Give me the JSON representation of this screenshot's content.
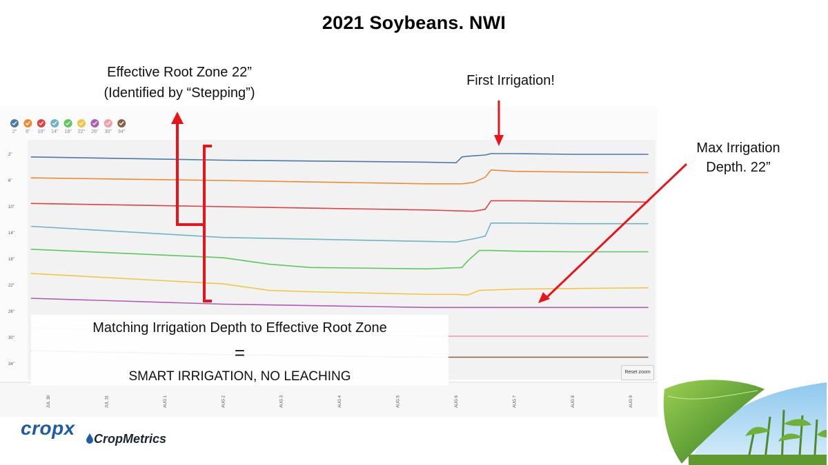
{
  "slide": {
    "title": "2021 Soybeans. NWI",
    "annotations": {
      "root_zone_line1": "Effective Root Zone 22”",
      "root_zone_line2": "(Identified by “Stepping”)",
      "first_irrigation": "First Irrigation!",
      "max_depth_line1": "Max Irrigation",
      "max_depth_line2": "Depth. 22”"
    },
    "overlay": {
      "line1": "Matching Irrigation Depth to Effective Root Zone",
      "equals": "=",
      "line3": "SMART IRRIGATION, NO LEACHING"
    },
    "logos": {
      "cropx": "cropx",
      "cropmetrics": "CropMetrics"
    },
    "reset_zoom": "Reset zoom",
    "accent_color": "#e8141b"
  },
  "chart_data": {
    "type": "line",
    "title": "",
    "xlabel": "",
    "ylabel": "",
    "x_ticks": [
      "JUL 30",
      "JUL 31",
      "AUG 1",
      "AUG 2",
      "AUG 3",
      "AUG 4",
      "AUG 5",
      "AUG 6",
      "AUG 7",
      "AUG 8",
      "AUG 9"
    ],
    "x_range": [
      0,
      10.4
    ],
    "y_range_px_note": "relative soil moisture readings per depth; values are read as offsets in arbitrary units",
    "y_ticks": [
      "2\"",
      "6\"",
      "10\"",
      "14\"",
      "18\"",
      "22\"",
      "26\"",
      "30\"",
      "34\""
    ],
    "y_range": [
      0,
      36
    ],
    "series": [
      {
        "name": "2\"",
        "color": "#4a78a8",
        "x": [
          -0.3,
          3.0,
          6.5,
          7.0,
          7.1,
          7.2,
          7.5,
          7.6,
          8.0,
          9.0,
          10.3
        ],
        "values": [
          2.4,
          2.9,
          3.2,
          3.3,
          2.4,
          2.3,
          2.1,
          1.9,
          1.9,
          2.0,
          2.0
        ]
      },
      {
        "name": "6\"",
        "color": "#ee8a34",
        "x": [
          -0.3,
          3.0,
          6.5,
          7.1,
          7.3,
          7.5,
          7.6,
          8.0,
          9.0,
          10.3
        ],
        "values": [
          5.6,
          6.0,
          6.5,
          6.5,
          6.3,
          5.5,
          4.4,
          4.6,
          4.7,
          4.8
        ]
      },
      {
        "name": "10\"",
        "color": "#e04040",
        "x": [
          -0.3,
          3.0,
          6.5,
          7.3,
          7.5,
          7.6,
          8.0,
          9.0,
          10.3
        ],
        "values": [
          9.5,
          10.0,
          10.5,
          10.7,
          10.4,
          9.1,
          9.1,
          9.2,
          9.3
        ]
      },
      {
        "name": "14\"",
        "color": "#6fb3c6",
        "x": [
          -0.3,
          3.0,
          6.5,
          7.0,
          7.3,
          7.5,
          7.6,
          8.0,
          9.0,
          10.3
        ],
        "values": [
          13.0,
          14.7,
          15.3,
          15.4,
          14.9,
          14.5,
          12.5,
          12.5,
          12.6,
          12.6
        ]
      },
      {
        "name": "18\"",
        "color": "#5ac85a",
        "x": [
          -0.3,
          3.0,
          3.8,
          4.5,
          6.5,
          7.1,
          7.2,
          7.4,
          7.6,
          8.0,
          9.0,
          10.3
        ],
        "values": [
          16.5,
          17.8,
          18.8,
          19.3,
          19.5,
          19.3,
          18.3,
          16.7,
          16.7,
          16.8,
          16.9,
          16.9
        ]
      },
      {
        "name": "22\"",
        "color": "#f4c542",
        "x": [
          -0.3,
          3.0,
          3.8,
          4.5,
          6.5,
          7.0,
          7.2,
          7.4,
          8.0,
          9.0,
          10.3
        ],
        "values": [
          20.2,
          21.8,
          22.8,
          23.0,
          23.4,
          23.4,
          23.5,
          22.8,
          22.6,
          22.5,
          22.4
        ]
      },
      {
        "name": "26\"",
        "color": "#b05ab4",
        "x": [
          -0.3,
          3.0,
          6.5,
          10.3
        ],
        "values": [
          24.0,
          24.9,
          25.4,
          25.4
        ]
      },
      {
        "name": "30\"",
        "color": "#f49aaa",
        "x": [
          -0.3,
          3.0,
          6.5,
          10.3
        ],
        "values": [
          28.5,
          29.3,
          29.8,
          29.8
        ]
      },
      {
        "name": "34\"",
        "color": "#8a6048",
        "x": [
          -0.3,
          3.0,
          6.5,
          10.3
        ],
        "values": [
          32.0,
          32.6,
          33.0,
          33.0
        ]
      }
    ]
  }
}
